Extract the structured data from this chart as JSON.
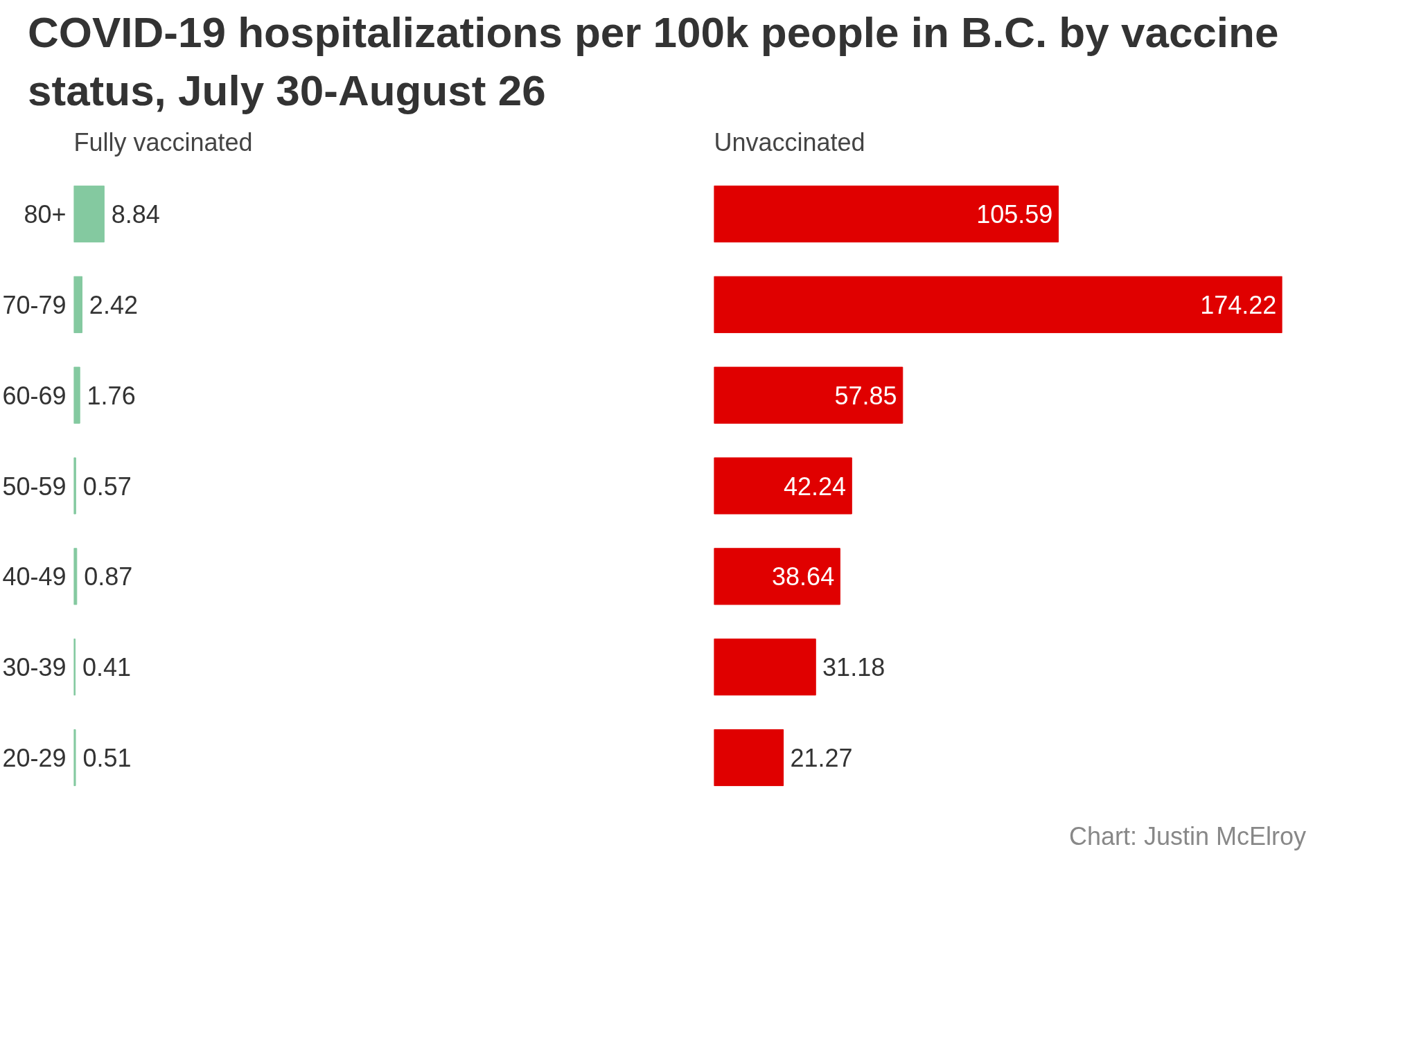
{
  "chart_data": [
    {
      "type": "bar",
      "orientation": "horizontal",
      "title": "COVID-19 hospitalizations per 100k people in B.C. by vaccine status, July 30-August 26",
      "subtitle": "Fully vaccinated",
      "categories": [
        "80+",
        "70-79",
        "60-69",
        "50-59",
        "40-49",
        "30-39",
        "20-29"
      ],
      "series": [
        {
          "color": "#84c9a0",
          "values": [
            8.84,
            2.42,
            1.76,
            0.57,
            0.87,
            0.41,
            0.51
          ]
        }
      ],
      "data_labels": true,
      "tick_labels": "y",
      "grid": false
    },
    {
      "type": "bar",
      "orientation": "horizontal",
      "subtitle": "Unvaccinated",
      "categories": [
        null,
        null,
        null,
        null,
        null,
        null,
        null
      ],
      "series": [
        {
          "color": "#e00000",
          "values": [
            105.59,
            174.22,
            57.85,
            42.24,
            38.64,
            31.18,
            21.27
          ]
        }
      ],
      "data_labels": true,
      "tick_labels": false,
      "grid": false,
      "annotations": [
        "Chart: Justin McElroy"
      ]
    }
  ]
}
